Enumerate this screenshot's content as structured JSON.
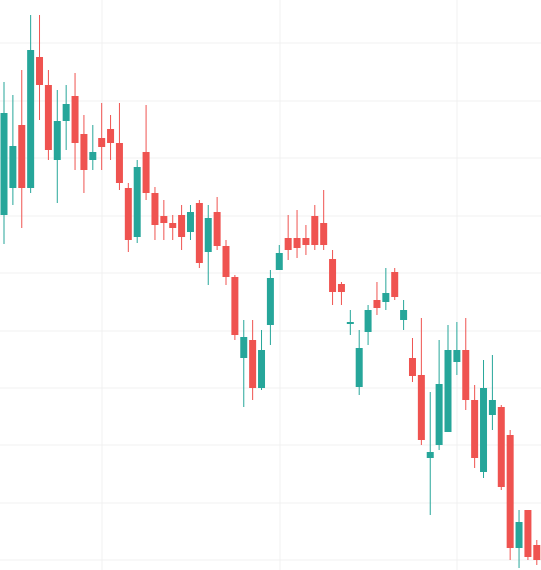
{
  "chart_data": {
    "type": "candlestick",
    "up_color": "#26a69a",
    "down_color": "#ef5350",
    "ylim": [
      0,
      570
    ],
    "open": [
      355,
      382,
      445,
      382,
      513,
      485,
      410,
      449,
      474,
      436,
      410,
      432,
      441,
      427,
      382,
      333,
      418,
      377,
      354,
      347,
      355,
      338,
      367,
      318,
      358,
      324,
      293,
      212,
      230,
      182,
      245,
      300,
      332,
      332,
      332,
      354,
      347,
      311,
      286,
      246,
      183,
      238,
      270,
      268,
      298,
      250,
      212,
      195,
      112,
      125,
      138,
      208,
      220,
      170,
      98,
      155,
      163,
      135,
      22,
      60,
      25
    ],
    "high": [
      488,
      475,
      500,
      555,
      555,
      500,
      480,
      485,
      497,
      455,
      445,
      467,
      455,
      467,
      387,
      410,
      465,
      383,
      370,
      355,
      365,
      365,
      370,
      365,
      373,
      330,
      295,
      250,
      250,
      240,
      300,
      325,
      355,
      360,
      345,
      365,
      380,
      320,
      288,
      260,
      240,
      265,
      288,
      302,
      302,
      270,
      232,
      252,
      178,
      230,
      245,
      248,
      252,
      185,
      210,
      215,
      165,
      140,
      60,
      60,
      30
    ],
    "low": [
      326,
      365,
      342,
      377,
      450,
      410,
      367,
      420,
      400,
      377,
      400,
      400,
      410,
      380,
      318,
      327,
      370,
      330,
      330,
      330,
      320,
      330,
      302,
      285,
      320,
      285,
      230,
      163,
      170,
      180,
      225,
      300,
      310,
      312,
      315,
      320,
      320,
      265,
      265,
      235,
      175,
      225,
      255,
      260,
      270,
      240,
      188,
      125,
      55,
      120,
      138,
      195,
      160,
      102,
      92,
      140,
      80,
      10,
      2,
      10,
      5
    ],
    "close": [
      457,
      424,
      382,
      520,
      485,
      420,
      449,
      466,
      427,
      400,
      418,
      423,
      427,
      387,
      330,
      403,
      377,
      345,
      347,
      342,
      333,
      358,
      307,
      352,
      324,
      293,
      235,
      233,
      182,
      220,
      292,
      317,
      320,
      322,
      325,
      325,
      325,
      278,
      278,
      248,
      222,
      260,
      262,
      277,
      273,
      260,
      194,
      130,
      118,
      186,
      220,
      220,
      170,
      112,
      182,
      170,
      83,
      22,
      48,
      13,
      10
    ]
  }
}
